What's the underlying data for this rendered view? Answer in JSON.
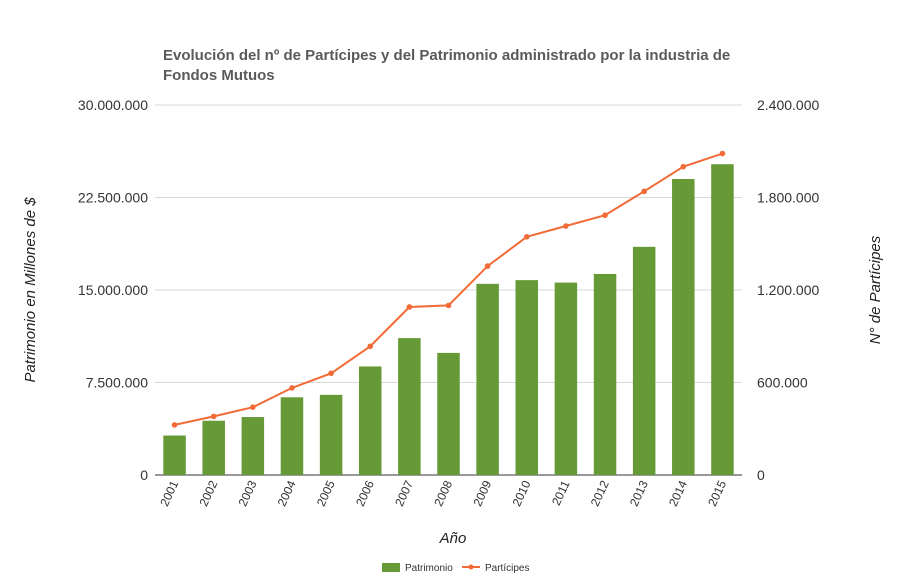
{
  "chart_data": {
    "type": "bar",
    "title_lines": [
      "Evolución del nº de Partícipes y del Patrimonio administrado por la industria de",
      "Fondos Mutuos"
    ],
    "xlabel": "Año",
    "ylabel_left": "Patrimonio en Millones de $",
    "ylabel_right": "N° de Partícipes",
    "categories": [
      "2001",
      "2002",
      "2003",
      "2004",
      "2005",
      "2006",
      "2007",
      "2008",
      "2009",
      "2010",
      "2011",
      "2012",
      "2013",
      "2014",
      "2015"
    ],
    "ylim_left": [
      0,
      30000000
    ],
    "ylim_right": [
      0,
      2400000
    ],
    "yticks_left": [
      "0",
      "7.500.000",
      "15.000.000",
      "22.500.000",
      "30.000.000"
    ],
    "yticks_right": [
      "0",
      "600.000",
      "1.200.000",
      "1.800.000",
      "2.400.000"
    ],
    "grid": true,
    "legend_position": "bottom",
    "series": [
      {
        "name": "Patrimonio",
        "type": "bar",
        "axis": "left",
        "color": "#659a36",
        "values": [
          3200000,
          4400000,
          4700000,
          6300000,
          6500000,
          8800000,
          11100000,
          9900000,
          15500000,
          15800000,
          15600000,
          16300000,
          18500000,
          24000000,
          25200000
        ]
      },
      {
        "name": "Partícipes",
        "type": "line",
        "axis": "right",
        "color": "#f26b36",
        "values": [
          325000,
          380000,
          440000,
          565000,
          660000,
          835000,
          1090000,
          1100000,
          1355000,
          1545000,
          1615000,
          1685000,
          1840000,
          2000000,
          2085000
        ]
      }
    ]
  }
}
